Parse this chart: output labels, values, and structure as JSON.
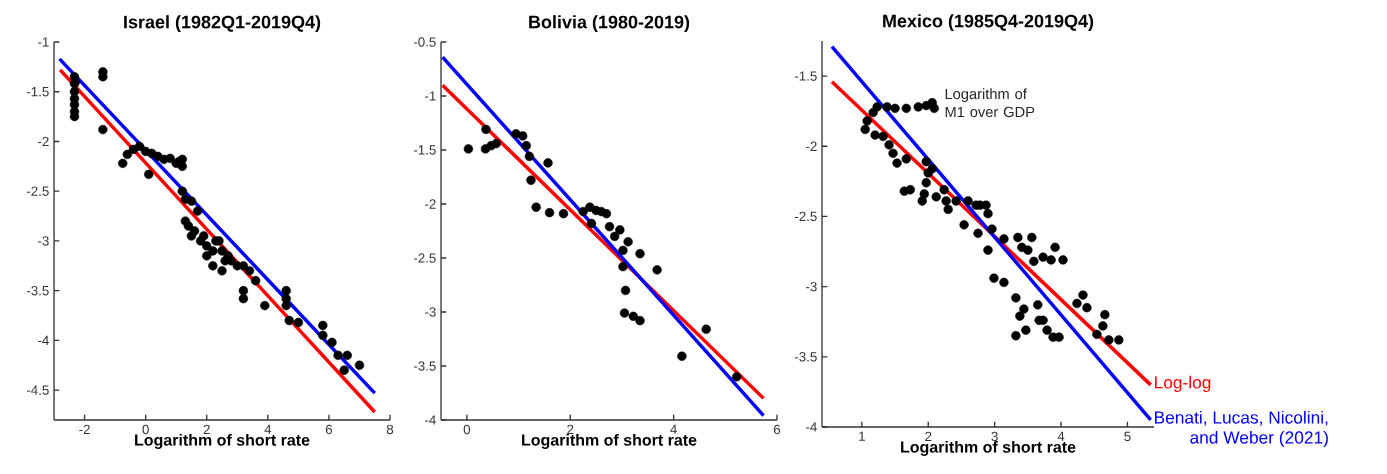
{
  "chart_data": [
    {
      "type": "scatter",
      "title": "Israel (1982Q1-2019Q4)",
      "xlabel": "Logarithm of short rate",
      "xlim": [
        -3,
        8
      ],
      "ylim": [
        -4.8,
        -1
      ],
      "xticks": [
        -2,
        0,
        2,
        4,
        6,
        8
      ],
      "yticks": [
        -4.5,
        -4,
        -3.5,
        -3,
        -2.5,
        -2,
        -1.5,
        -1
      ],
      "series": [
        {
          "marker": "circle",
          "color": "#000000",
          "x": [
            -2.33,
            -2.33,
            -2.33,
            -2.33,
            -2.33,
            -2.33,
            -2.33,
            -2.3,
            -1.4,
            -1.4,
            -1.4,
            -0.75,
            -0.6,
            -0.4,
            -0.2,
            0,
            0.2,
            0.1,
            0.4,
            0.6,
            0.8,
            1.0,
            1.2,
            1.2,
            1.1,
            1.2,
            1.3,
            1.5,
            1.7,
            1.3,
            1.4,
            1.5,
            1.6,
            1.8,
            2.0,
            2.0,
            2.2,
            2.2,
            2.3,
            2.5,
            2.6,
            2.8,
            3.0,
            2.5,
            2.7,
            3.2,
            3.4,
            3.6,
            3.2,
            3.2,
            3.9,
            4.6,
            4.6,
            4.6,
            4.7,
            5.0,
            5.8,
            5.8,
            6.1,
            6.3,
            6.6,
            6.5,
            7.0,
            2.4,
            1.9
          ],
          "values": [
            -1.35,
            -1.42,
            -1.5,
            -1.57,
            -1.63,
            -1.7,
            -1.75,
            -1.4,
            -1.3,
            -1.35,
            -1.88,
            -2.22,
            -2.13,
            -2.08,
            -2.05,
            -2.1,
            -2.12,
            -2.33,
            -2.15,
            -2.18,
            -2.17,
            -2.22,
            -2.18,
            -2.25,
            -2.2,
            -2.5,
            -2.58,
            -2.6,
            -2.7,
            -2.8,
            -2.85,
            -2.95,
            -2.9,
            -3.0,
            -3.05,
            -3.15,
            -3.1,
            -3.25,
            -3.0,
            -3.1,
            -3.2,
            -3.2,
            -3.25,
            -3.3,
            -3.15,
            -3.25,
            -3.3,
            -3.4,
            -3.5,
            -3.58,
            -3.65,
            -3.5,
            -3.58,
            -3.65,
            -3.8,
            -3.82,
            -3.85,
            -3.95,
            -4.02,
            -4.15,
            -4.15,
            -4.3,
            -4.25,
            -3.0,
            -2.95
          ]
        },
        {
          "type": "line",
          "color": "#ff0000",
          "x": [
            -2.8,
            7.5
          ],
          "values": [
            -1.28,
            -4.72
          ]
        },
        {
          "type": "line",
          "color": "#0000ff",
          "x": [
            -2.82,
            7.5
          ],
          "values": [
            -1.17,
            -4.53
          ]
        }
      ]
    },
    {
      "type": "scatter",
      "title": "Bolivia (1980-2019)",
      "xlabel": "Logarithm of short rate",
      "xlim": [
        -0.5,
        6
      ],
      "ylim": [
        -4,
        -0.5
      ],
      "xticks": [
        0,
        2,
        4,
        6
      ],
      "yticks": [
        -4,
        -3.5,
        -3,
        -2.5,
        -2,
        -1.5,
        -1,
        -0.5
      ],
      "series": [
        {
          "marker": "circle",
          "color": "#000000",
          "x": [
            0.03,
            0.37,
            0.36,
            0.47,
            0.57,
            0.95,
            1.08,
            1.15,
            1.21,
            1.24,
            1.34,
            1.57,
            1.6,
            1.87,
            2.25,
            2.38,
            2.5,
            2.6,
            2.7,
            2.41,
            2.76,
            2.86,
            2.96,
            3.02,
            3.12,
            3.35,
            3.02,
            3.68,
            3.07,
            3.05,
            3.22,
            3.35,
            4.16,
            4.63,
            5.22
          ],
          "values": [
            -1.49,
            -1.31,
            -1.49,
            -1.46,
            -1.44,
            -1.35,
            -1.37,
            -1.46,
            -1.56,
            -1.78,
            -2.03,
            -1.62,
            -2.08,
            -2.09,
            -2.07,
            -2.03,
            -2.06,
            -2.07,
            -2.09,
            -2.18,
            -2.21,
            -2.3,
            -2.24,
            -2.43,
            -2.35,
            -2.46,
            -2.58,
            -2.61,
            -2.8,
            -3.01,
            -3.04,
            -3.08,
            -3.41,
            -3.16,
            -3.6
          ]
        },
        {
          "type": "line",
          "color": "#ff0000",
          "x": [
            -0.47,
            5.74
          ],
          "values": [
            -0.9,
            -3.8
          ]
        },
        {
          "type": "line",
          "color": "#0000ff",
          "x": [
            -0.47,
            5.74
          ],
          "values": [
            -0.64,
            -3.96
          ]
        }
      ]
    },
    {
      "type": "scatter",
      "title": "Mexico (1985Q4-2019Q4)",
      "xlabel": "Logarithm of short rate",
      "xlim": [
        0.4,
        5.4
      ],
      "ylim": [
        -4,
        -1.25
      ],
      "xticks": [
        1,
        2,
        3,
        4,
        5
      ],
      "yticks": [
        -4,
        -3.5,
        -3,
        -2.5,
        -2,
        -1.5
      ],
      "series": [
        {
          "marker": "circle",
          "name": "Logarithm of M1 over GDP",
          "color": "#000000",
          "x": [
            1.23,
            1.38,
            1.5,
            1.67,
            1.85,
            1.97,
            2.06,
            2.09,
            1.05,
            1.08,
            1.17,
            1.2,
            1.32,
            1.41,
            1.47,
            1.53,
            1.67,
            1.64,
            1.73,
            1.91,
            1.97,
            2.0,
            2.06,
            1.97,
            2.12,
            2.24,
            2.27,
            2.3,
            2.42,
            1.94,
            2.54,
            2.6,
            2.72,
            2.78,
            2.87,
            2.9,
            2.75,
            2.9,
            2.96,
            3.14,
            2.99,
            3.14,
            3.35,
            3.41,
            3.5,
            3.56,
            3.59,
            3.73,
            3.85,
            3.91,
            4.03,
            3.32,
            3.44,
            3.38,
            3.32,
            3.47,
            3.65,
            3.67,
            3.73,
            3.79,
            3.88,
            3.97,
            4.24,
            4.33,
            4.39,
            4.54,
            4.63,
            4.66,
            4.72,
            4.87
          ],
          "values": [
            -1.72,
            -1.72,
            -1.73,
            -1.73,
            -1.72,
            -1.71,
            -1.69,
            -1.73,
            -1.88,
            -1.82,
            -1.76,
            -1.92,
            -1.93,
            -1.99,
            -2.05,
            -2.12,
            -2.09,
            -2.32,
            -2.31,
            -2.39,
            -2.11,
            -2.19,
            -2.16,
            -2.26,
            -2.36,
            -2.31,
            -2.39,
            -2.45,
            -2.39,
            -2.34,
            -2.56,
            -2.39,
            -2.42,
            -2.42,
            -2.42,
            -2.48,
            -2.62,
            -2.74,
            -2.59,
            -2.66,
            -2.94,
            -2.97,
            -2.65,
            -2.72,
            -2.74,
            -2.65,
            -2.82,
            -2.79,
            -2.81,
            -2.72,
            -2.81,
            -3.08,
            -3.16,
            -3.21,
            -3.35,
            -3.31,
            -3.13,
            -3.24,
            -3.24,
            -3.31,
            -3.36,
            -3.36,
            -3.12,
            -3.06,
            -3.15,
            -3.34,
            -3.28,
            -3.2,
            -3.38,
            -3.38
          ]
        },
        {
          "type": "line",
          "name": "Log-log",
          "color": "#ff0000",
          "x": [
            0.55,
            5.35
          ],
          "values": [
            -1.54,
            -3.7
          ]
        },
        {
          "type": "line",
          "name": "Benati, Lucas, Nicolini, and Weber (2021)",
          "color": "#0000ff",
          "x": [
            0.55,
            5.35
          ],
          "values": [
            -1.29,
            -3.95
          ]
        }
      ]
    }
  ]
}
